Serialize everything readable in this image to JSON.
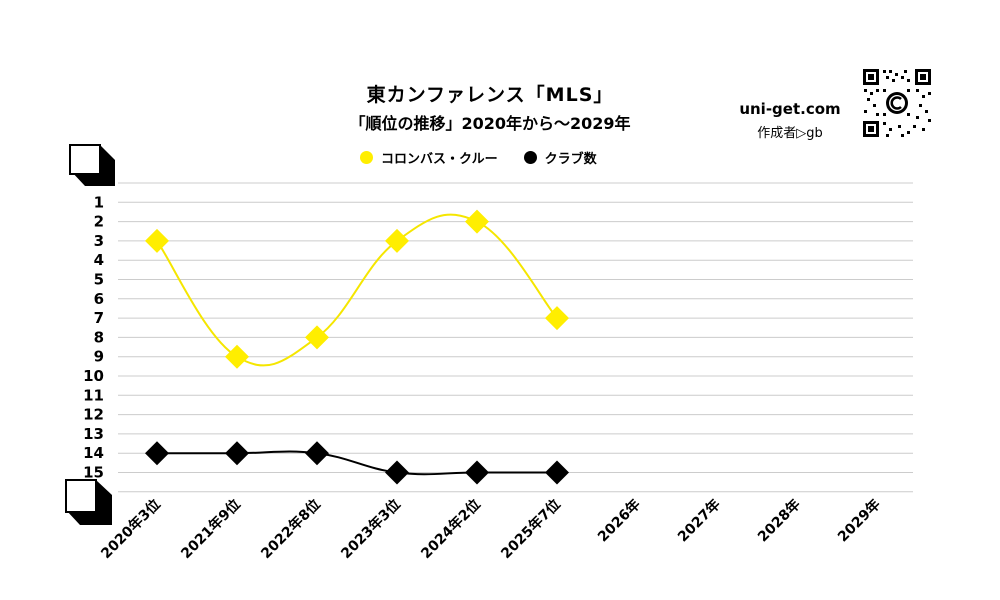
{
  "header": {
    "title": "東カンファレンス「MLS」",
    "subtitle": "「順位の推移」2020年から～2029年",
    "brand": "uni-get.com",
    "author": "作成者▷gb"
  },
  "colors": {
    "series_1": "#ffee00",
    "series_1_line": "#f5e600",
    "series_2": "#000000",
    "grid": "#cccccc"
  },
  "icons": {
    "qr": "qr-code-icon",
    "corner": "page-corner-icon"
  },
  "chart_data": {
    "type": "line",
    "title": "東カンファレンス「MLS」",
    "subtitle": "「順位の推移」2020年から～2029年",
    "categories": [
      "2020年3位",
      "2021年9位",
      "2022年8位",
      "2023年3位",
      "2024年2位",
      "2025年7位",
      "2026年",
      "2027年",
      "2028年",
      "2029年"
    ],
    "y_ticks": [
      "1",
      "2",
      "3",
      "4",
      "5",
      "6",
      "7",
      "8",
      "9",
      "10",
      "11",
      "12",
      "13",
      "14",
      "15"
    ],
    "ylim": [
      0,
      16
    ],
    "y_inverted": true,
    "grid": true,
    "legend_position": "top-center",
    "series": [
      {
        "name": "コロンバス・クルー",
        "color": "#ffee00",
        "values": [
          3,
          9,
          8,
          3,
          2,
          7,
          null,
          null,
          null,
          null
        ]
      },
      {
        "name": "クラブ数",
        "color": "#000000",
        "values": [
          14,
          14,
          14,
          15,
          15,
          15,
          null,
          null,
          null,
          null
        ]
      }
    ]
  }
}
